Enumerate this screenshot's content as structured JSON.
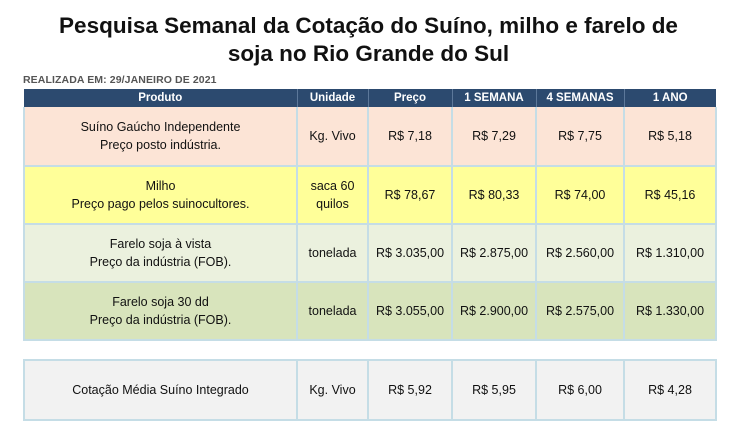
{
  "title_line1": "Pesquisa Semanal da Cotação do Suíno, milho e farelo de",
  "title_line2": "soja no Rio Grande do Sul",
  "realizada": "REALIZADA EM: 29/JANEIRO DE 2021",
  "headers": [
    "Produto",
    "Unidade",
    "Preço",
    "1 SEMANA",
    "4 SEMANAS",
    "1 ANO"
  ],
  "rows": [
    {
      "produto_line1": "Suíno Gaúcho Independente",
      "produto_line2": "Preço posto indústria.",
      "unidade_line1": "Kg. Vivo",
      "unidade_line2": "",
      "preco": "R$ 7,18",
      "semana1": "R$ 7,29",
      "semanas4": "R$ 7,75",
      "ano1": "R$ 5,18"
    },
    {
      "produto_line1": "Milho",
      "produto_line2": "Preço pago pelos suinocultores.",
      "unidade_line1": "saca 60",
      "unidade_line2": "quilos",
      "preco": "R$ 78,67",
      "semana1": "R$ 80,33",
      "semanas4": "R$ 74,00",
      "ano1": "R$ 45,16"
    },
    {
      "produto_line1": "Farelo soja à vista",
      "produto_line2": "Preço da indústria (FOB).",
      "unidade_line1": "tonelada",
      "unidade_line2": "",
      "preco": "R$ 3.035,00",
      "semana1": "R$ 2.875,00",
      "semanas4": "R$ 2.560,00",
      "ano1": "R$ 1.310,00"
    },
    {
      "produto_line1": "Farelo soja 30 dd",
      "produto_line2": "Preço da indústria (FOB).",
      "unidade_line1": "tonelada",
      "unidade_line2": "",
      "preco": "R$ 3.055,00",
      "semana1": "R$ 2.900,00",
      "semanas4": "R$ 2.575,00",
      "ano1": "R$ 1.330,00"
    }
  ],
  "integrado": {
    "produto": "Cotação Média Suíno Integrado",
    "unidade": "Kg. Vivo",
    "preco": "R$ 5,92",
    "semana1": "R$ 5,95",
    "semanas4": "R$ 6,00",
    "ano1": "R$ 4,28"
  },
  "colors": {
    "header_bg": "#2c4a6f",
    "row_suino": "#fce4d6",
    "row_milho": "#ffff99",
    "row_farelo_vista": "#ebf1de",
    "row_farelo_30dd": "#d8e4bc",
    "row_integrado": "#f2f2f2",
    "border": "#c5dde6"
  }
}
